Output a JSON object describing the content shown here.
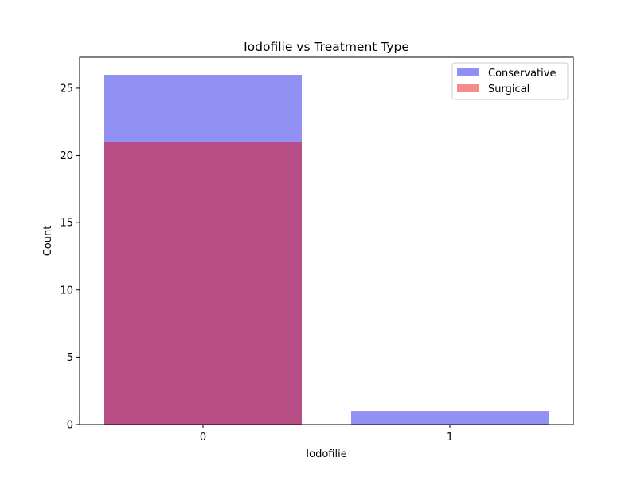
{
  "chart_data": {
    "type": "bar",
    "title": "Iodofilie vs Treatment Type",
    "xlabel": "Iodofilie",
    "ylabel": "Count",
    "categories": [
      "0",
      "1"
    ],
    "series": [
      {
        "name": "Conservative",
        "values": [
          26,
          1
        ],
        "color": "#0000e6",
        "opacity": 0.43
      },
      {
        "name": "Surgical",
        "values": [
          21,
          0
        ],
        "color": "#e60000",
        "opacity": 0.45
      }
    ],
    "ylim": [
      0,
      27.3
    ],
    "yticks": [
      0,
      5,
      10,
      15,
      20,
      25
    ],
    "yticks_labels": [
      "0",
      "5",
      "10",
      "15",
      "20",
      "25"
    ],
    "grid": false,
    "legend_position": "top-right"
  }
}
